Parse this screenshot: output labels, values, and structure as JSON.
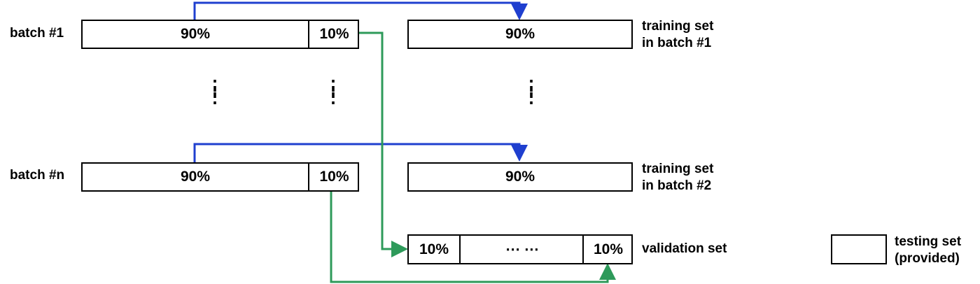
{
  "rows": {
    "batch1_label": "batch #1",
    "batchn_label": "batch #n"
  },
  "batch1": {
    "left": "90%",
    "right": "10%"
  },
  "batchn": {
    "left": "90%",
    "right": "10%"
  },
  "train1": {
    "value": "90%",
    "label_line1": "training set",
    "label_line2": "in batch #1"
  },
  "train2": {
    "value": "90%",
    "label_line1": "training set",
    "label_line2": "in batch #2"
  },
  "validation": {
    "first": "10%",
    "middle": "⋯ ⋯",
    "last": "10%",
    "label": "validation set"
  },
  "testing": {
    "label_line1": "testing set",
    "label_line2": "(provided)"
  },
  "colors": {
    "training_arrow": "#1f3fcf",
    "validation_arrow": "#2e9a5a"
  }
}
